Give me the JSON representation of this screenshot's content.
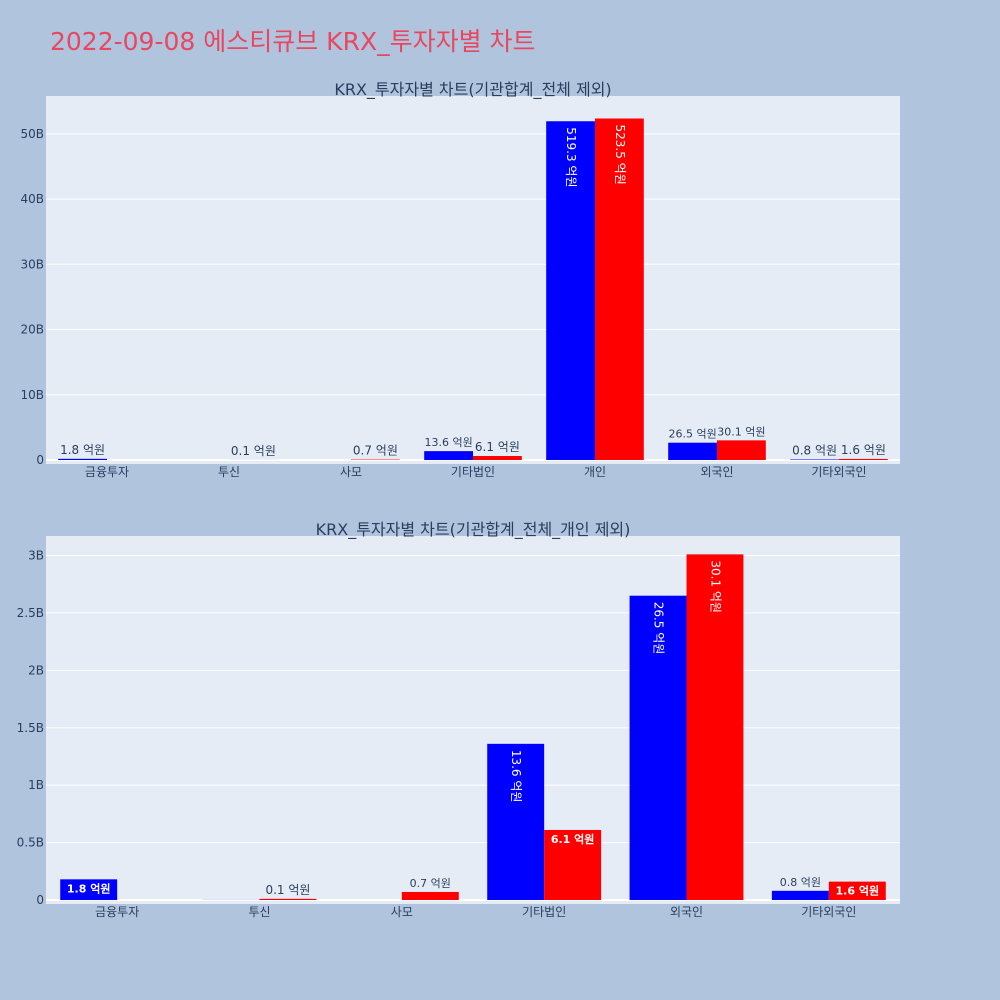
{
  "page_title": "2022-09-08 에스티큐브 KRX_투자자별 차트",
  "colors": {
    "series_a": "#0000ff",
    "series_b": "#ff0000",
    "plot_bg": "#e5ecf6",
    "page_bg": "#b0c4de",
    "title": "#e8475f"
  },
  "chart_data": [
    {
      "type": "bar",
      "title": "KRX_투자자별 차트(기관합계_전체 제외)",
      "categories": [
        "금융투자",
        "투신",
        "사모",
        "기타법인",
        "개인",
        "외국인",
        "기타외국인"
      ],
      "series": [
        {
          "values": [
            0.18,
            0.001,
            0.0,
            1.36,
            51.93,
            2.65,
            0.08
          ],
          "labels": [
            "1.8 억원",
            "",
            "",
            "13.6 억원",
            "519.3 억원",
            "26.5 억원",
            "0.8 억원"
          ]
        },
        {
          "values": [
            0.0,
            0.01,
            0.07,
            0.61,
            52.35,
            3.01,
            0.16
          ],
          "labels": [
            "",
            "0.1 억원",
            "0.7 억원",
            "6.1 억원",
            "523.5 억원",
            "30.1 억원",
            "1.6 억원"
          ]
        }
      ],
      "yunit": "B",
      "yticks": [
        0,
        10,
        20,
        30,
        40,
        50
      ],
      "ytick_labels": [
        "0",
        "10B",
        "20B",
        "30B",
        "40B",
        "50B"
      ],
      "ylim": [
        0,
        55.8
      ],
      "grid": true
    },
    {
      "type": "bar",
      "title": "KRX_투자자별 차트(기관합계_전체_개인 제외)",
      "categories": [
        "금융투자",
        "투신",
        "사모",
        "기타법인",
        "외국인",
        "기타외국인"
      ],
      "series": [
        {
          "values": [
            0.18,
            0.001,
            0.0,
            1.36,
            2.65,
            0.08
          ],
          "labels": [
            "1.8 억원",
            "",
            "",
            "13.6 억원",
            "26.5 억원",
            "0.8 억원"
          ]
        },
        {
          "values": [
            0.0,
            0.01,
            0.07,
            0.61,
            3.01,
            0.16
          ],
          "labels": [
            "",
            "0.1 억원",
            "0.7 억원",
            "6.1 억원",
            "30.1 억원",
            "1.6 억원"
          ]
        }
      ],
      "yunit": "B",
      "yticks": [
        0,
        0.5,
        1,
        1.5,
        2,
        2.5,
        3
      ],
      "ytick_labels": [
        "0",
        "0.5B",
        "1B",
        "1.5B",
        "2B",
        "2.5B",
        "3B"
      ],
      "ylim": [
        0,
        3.17
      ],
      "grid": true
    }
  ]
}
